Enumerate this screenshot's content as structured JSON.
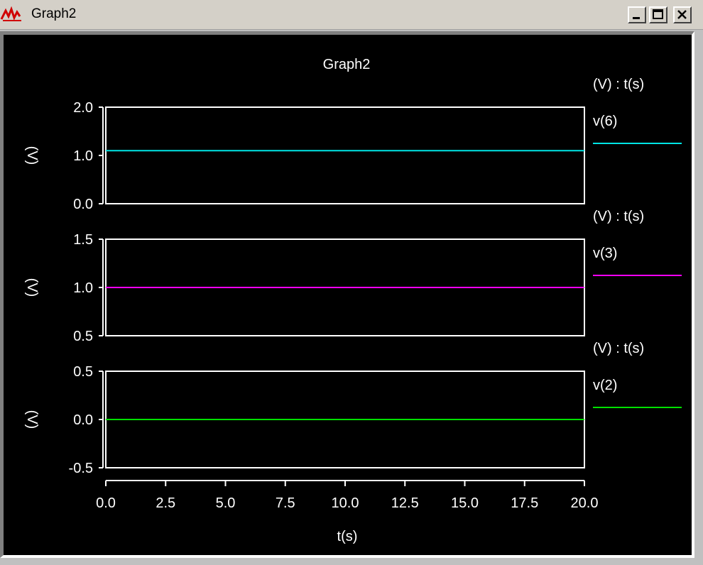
{
  "window": {
    "title": "Graph2",
    "app_icon": "analog-waveform-icon",
    "controls": [
      "minimize-icon",
      "maximize-icon",
      "close-icon"
    ]
  },
  "colors": {
    "background": "#000000",
    "axes": "#ffffff",
    "v6": "#00e5e5",
    "v3": "#ff00ff",
    "v2": "#00e000"
  },
  "chart_data": {
    "type": "line",
    "title": "Graph2",
    "xlabel": "t(s)",
    "xlim": [
      0,
      20
    ],
    "xticks": [
      "0.0",
      "2.5",
      "5.0",
      "7.5",
      "10.0",
      "12.5",
      "15.0",
      "17.5",
      "20.0"
    ],
    "grid": false,
    "legend": "right",
    "panels": [
      {
        "ylabel": "(V)",
        "legend_header": "(V) : t(s)",
        "ylim": [
          0,
          2
        ],
        "yticks": [
          "2.0",
          "1.0",
          "0.0"
        ],
        "series": [
          {
            "name": "v(6)",
            "color": "#00e5e5",
            "x": [
              0,
              20
            ],
            "y": [
              1.1,
              1.1
            ]
          }
        ]
      },
      {
        "ylabel": "(V)",
        "legend_header": "(V) : t(s)",
        "ylim": [
          0.5,
          1.5
        ],
        "yticks": [
          "1.5",
          "1.0",
          "0.5"
        ],
        "series": [
          {
            "name": "v(3)",
            "color": "#ff00ff",
            "x": [
              0,
              20
            ],
            "y": [
              1.0,
              1.0
            ]
          }
        ]
      },
      {
        "ylabel": "(V)",
        "legend_header": "(V) : t(s)",
        "ylim": [
          -0.5,
          0.5
        ],
        "yticks": [
          "0.5",
          "0.0",
          "-0.5"
        ],
        "series": [
          {
            "name": "v(2)",
            "color": "#00e000",
            "x": [
              0,
              20
            ],
            "y": [
              0.0,
              0.0
            ]
          }
        ]
      }
    ]
  }
}
